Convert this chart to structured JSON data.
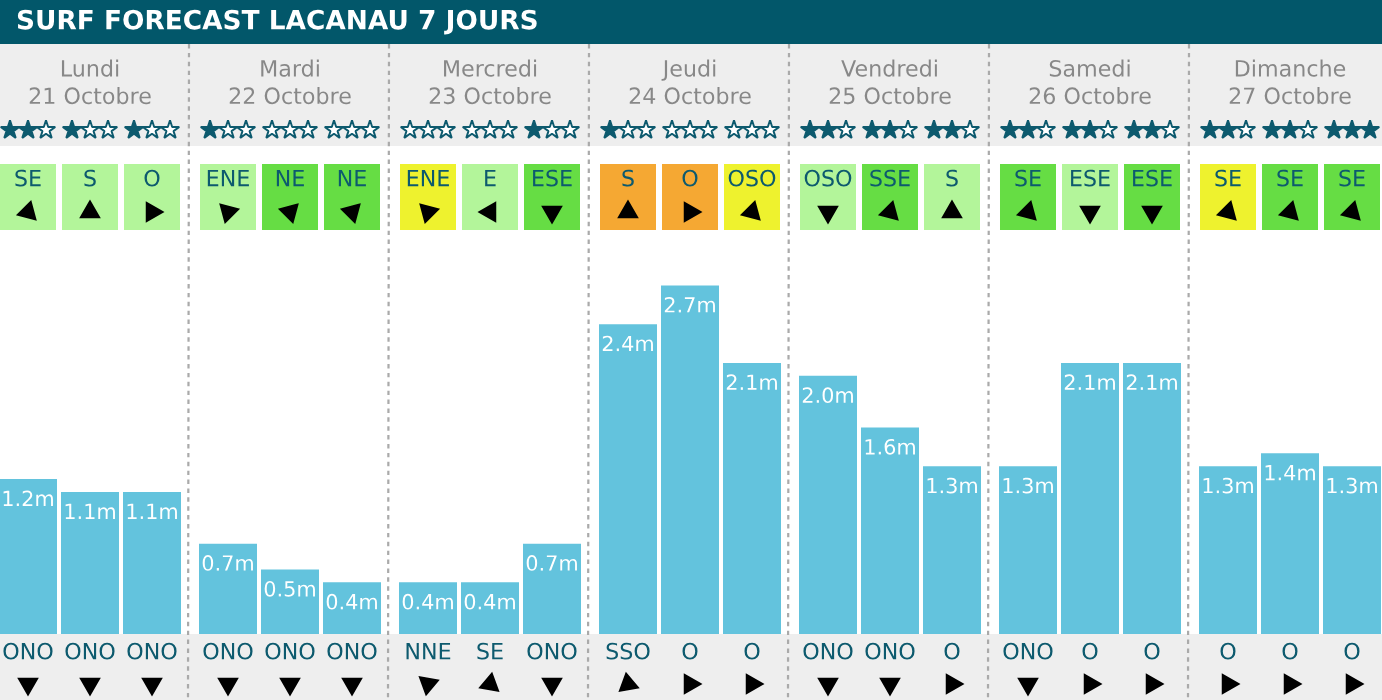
{
  "chart_data": {
    "type": "bar",
    "title": "SURF FORECAST LACANAU 7 JOURS",
    "categories": [
      "ONO",
      "ONO",
      "ONO",
      "ONO",
      "ONO",
      "ONO",
      "NNE",
      "SE",
      "ONO",
      "SSO",
      "O",
      "O",
      "ONO",
      "ONO",
      "O",
      "ONO",
      "O",
      "O",
      "O",
      "O",
      "O"
    ],
    "values": [
      1.2,
      1.1,
      1.1,
      0.7,
      0.5,
      0.4,
      0.4,
      0.4,
      0.7,
      2.4,
      2.7,
      2.1,
      2.0,
      1.6,
      1.3,
      1.3,
      2.1,
      2.1,
      1.3,
      1.4,
      1.3
    ],
    "value_labels": [
      "1.2m",
      "1.1m",
      "1.1m",
      "0.7m",
      "0.5m",
      "0.4m",
      "0.4m",
      "0.4m",
      "0.7m",
      "2.4m",
      "2.7m",
      "2.1m",
      "2.0m",
      "1.6m",
      "1.3m",
      "1.3m",
      "2.1m",
      "2.1m",
      "1.3m",
      "1.4m",
      "1.3m"
    ],
    "color": "#63c3dd",
    "annotations": [
      "Lundi\n21 Octobre",
      "Mardi\n22 Octobre",
      "Mercredi\n23 Octobre",
      "Jeudi\n24 Octobre",
      "Vendredi\n25 Octobre",
      "Samedi\n26 Octobre",
      "Dimanche\n27 Octobre",
      "SE",
      "S",
      "O",
      "ENE",
      "NE",
      "NE",
      "ENE",
      "E",
      "ESE",
      "S",
      "O",
      "OSO",
      "OSO",
      "SSE",
      "S",
      "SE",
      "ESE",
      "ESE",
      "SE",
      "SE",
      "SE"
    ],
    "grid": false,
    "legend": false
  }
}
